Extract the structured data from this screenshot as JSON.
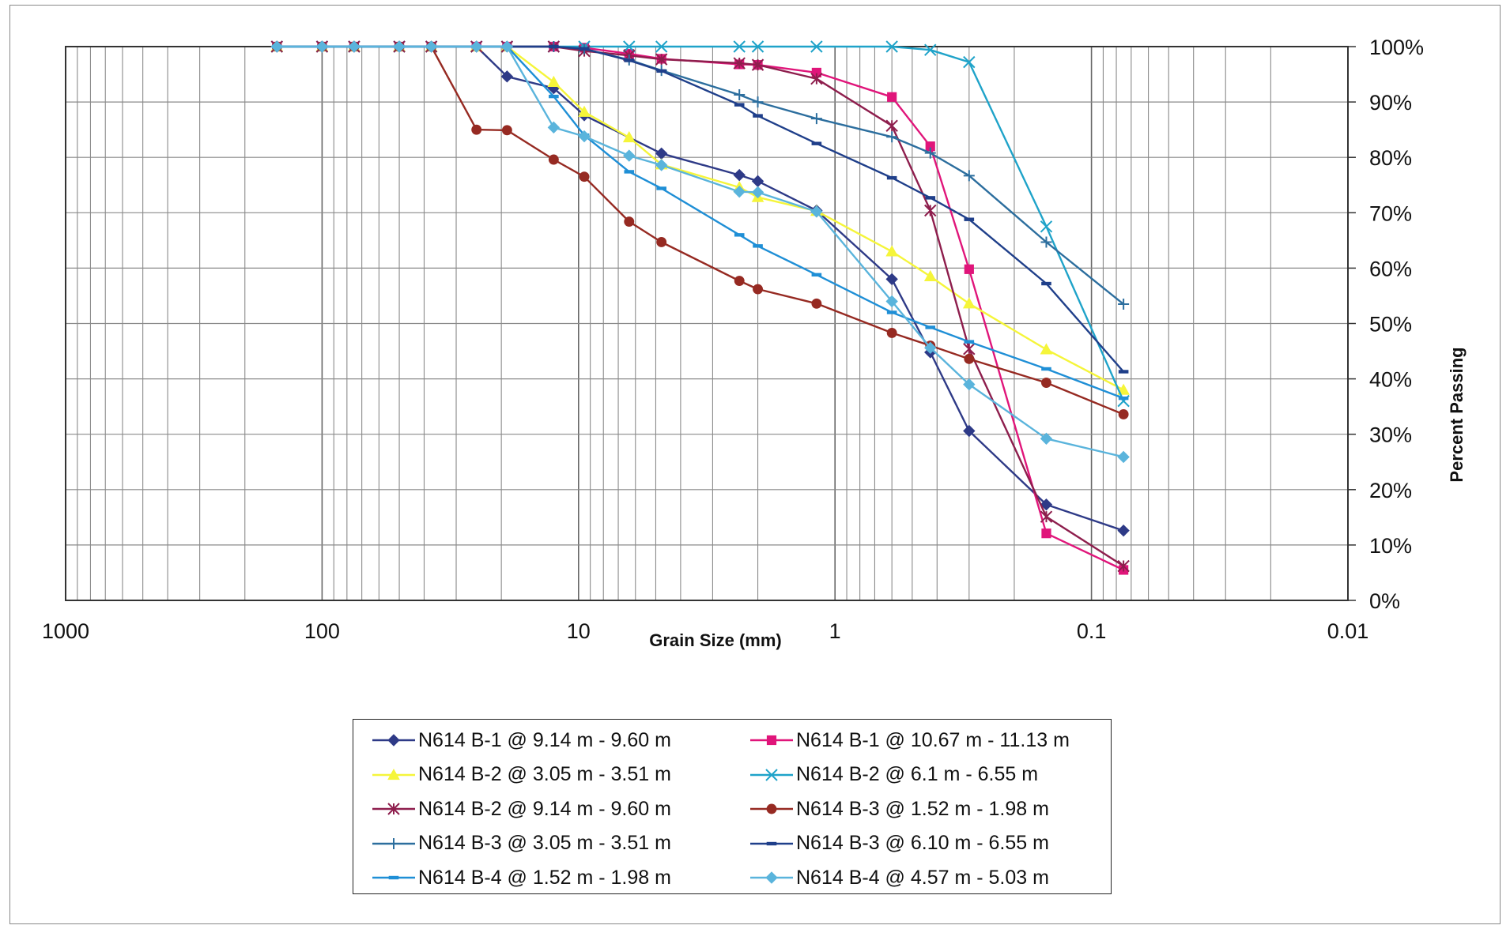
{
  "chart_data": {
    "type": "line",
    "title": "",
    "xlabel": "Grain Size (mm)",
    "ylabel": "Percent Passing",
    "x_scale": "log",
    "x_reversed": true,
    "xlim": [
      1000,
      0.01
    ],
    "ylim": [
      0,
      100
    ],
    "x_ticks": [
      1000,
      100,
      10,
      1,
      0.1,
      0.01
    ],
    "x_tick_labels": [
      "1000",
      "100",
      "10",
      "1",
      "0.1",
      "0.01"
    ],
    "y_ticks": [
      0,
      10,
      20,
      30,
      40,
      50,
      60,
      70,
      80,
      90,
      100
    ],
    "y_tick_labels": [
      "0%",
      "10%",
      "20%",
      "30%",
      "40%",
      "50%",
      "60%",
      "70%",
      "80%",
      "90%",
      "100%"
    ],
    "grid": true,
    "legend_position": "bottom",
    "series": [
      {
        "name": "N614 B-1 @ 9.14 m - 9.60 m",
        "color": "#2E3A87",
        "marker": "diamond",
        "x": [
          150,
          100,
          75,
          50,
          37.5,
          25,
          19,
          12.5,
          9.5,
          4.75,
          2.36,
          2.0,
          1.18,
          0.6,
          0.425,
          0.3,
          0.15,
          0.075
        ],
        "y": [
          100,
          100,
          100,
          100,
          100,
          100,
          94.6,
          92.5,
          87.6,
          80.7,
          76.8,
          75.7,
          70.4,
          58.0,
          44.8,
          30.6,
          17.3,
          12.6
        ]
      },
      {
        "name": "N614 B-1 @ 10.67 m - 11.13 m",
        "color": "#E0157A",
        "marker": "square",
        "x": [
          150,
          100,
          75,
          50,
          37.5,
          25,
          19,
          12.5,
          9.5,
          6.35,
          4.75,
          2.36,
          2.0,
          1.18,
          0.6,
          0.425,
          0.3,
          0.15,
          0.075
        ],
        "y": [
          100,
          100,
          100,
          100,
          100,
          100,
          100,
          100,
          99.8,
          98.7,
          97.8,
          96.8,
          96.7,
          95.3,
          90.9,
          82.0,
          59.8,
          12.1,
          5.5
        ]
      },
      {
        "name": "N614 B-2 @ 3.05 m - 3.51 m",
        "color": "#F5F53A",
        "marker": "triangle",
        "x": [
          150,
          100,
          75,
          50,
          37.5,
          25,
          19,
          12.5,
          9.5,
          6.35,
          4.75,
          2.36,
          2.0,
          1.18,
          0.6,
          0.425,
          0.3,
          0.15,
          0.075
        ],
        "y": [
          100,
          100,
          100,
          100,
          100,
          100,
          100,
          93.6,
          88.2,
          83.6,
          78.7,
          74.6,
          72.8,
          70.3,
          63.0,
          58.5,
          53.6,
          45.3,
          38.0
        ]
      },
      {
        "name": "N614 B-2 @ 6.1 m - 6.55 m",
        "color": "#1FA3C9",
        "marker": "x",
        "x": [
          150,
          100,
          75,
          50,
          37.5,
          25,
          19,
          12.5,
          9.5,
          6.35,
          4.75,
          2.36,
          2.0,
          1.18,
          0.6,
          0.425,
          0.3,
          0.15,
          0.075
        ],
        "y": [
          100,
          100,
          100,
          100,
          100,
          100,
          100,
          100,
          100,
          100,
          100,
          100,
          100,
          100,
          100,
          99.4,
          97.2,
          67.5,
          36.0
        ]
      },
      {
        "name": "N614 B-2 @ 9.14 m - 9.60 m",
        "color": "#8E1E4D",
        "marker": "star",
        "x": [
          150,
          100,
          75,
          50,
          37.5,
          25,
          19,
          12.5,
          9.5,
          6.35,
          4.75,
          2.36,
          2.0,
          1.18,
          0.6,
          0.425,
          0.3,
          0.15,
          0.075
        ],
        "y": [
          100,
          100,
          100,
          100,
          100,
          100,
          100,
          100,
          99.2,
          98.4,
          97.7,
          97.0,
          96.7,
          94.2,
          85.7,
          70.4,
          45.4,
          15.1,
          6.2
        ]
      },
      {
        "name": "N614 B-3 @ 1.52 m - 1.98 m",
        "color": "#962A22",
        "marker": "circle",
        "x": [
          150,
          100,
          75,
          50,
          37.5,
          25,
          19,
          12.5,
          9.5,
          6.35,
          4.75,
          2.36,
          2.0,
          1.18,
          0.6,
          0.425,
          0.3,
          0.15,
          0.075
        ],
        "y": [
          100,
          100,
          100,
          100,
          100,
          85.0,
          84.9,
          79.6,
          76.5,
          68.4,
          64.7,
          57.7,
          56.2,
          53.6,
          48.3,
          46.0,
          43.6,
          39.3,
          33.6
        ]
      },
      {
        "name": "N614 B-3 @ 3.05 m - 3.51 m",
        "color": "#2C6E9E",
        "marker": "plus",
        "x": [
          150,
          100,
          75,
          50,
          37.5,
          25,
          19,
          12.5,
          9.5,
          6.35,
          4.75,
          2.36,
          2.0,
          1.18,
          0.6,
          0.425,
          0.3,
          0.15,
          0.075
        ],
        "y": [
          100,
          100,
          100,
          100,
          100,
          100,
          100,
          100,
          99.6,
          97.6,
          95.7,
          91.3,
          90.0,
          87.0,
          83.7,
          80.8,
          76.7,
          64.7,
          53.5
        ]
      },
      {
        "name": "N614 B-3 @ 6.10 m - 6.55 m",
        "color": "#1F3F8A",
        "marker": "dash",
        "x": [
          150,
          100,
          75,
          50,
          37.5,
          25,
          19,
          12.5,
          9.5,
          6.35,
          4.75,
          2.36,
          2.0,
          1.18,
          0.6,
          0.425,
          0.3,
          0.15,
          0.075
        ],
        "y": [
          100,
          100,
          100,
          100,
          100,
          100,
          100,
          100,
          99.6,
          97.5,
          95.6,
          89.5,
          87.5,
          82.5,
          76.3,
          72.7,
          68.8,
          57.2,
          41.3
        ]
      },
      {
        "name": "N614 B-4 @ 1.52 m - 1.98 m",
        "color": "#1F8FD6",
        "marker": "dash",
        "x": [
          150,
          100,
          75,
          50,
          37.5,
          25,
          19,
          12.5,
          9.5,
          6.35,
          4.75,
          2.36,
          2.0,
          1.18,
          0.6,
          0.425,
          0.3,
          0.15,
          0.075
        ],
        "y": [
          100,
          100,
          100,
          100,
          100,
          100,
          100,
          91.0,
          84.0,
          77.4,
          74.4,
          66.0,
          64.0,
          58.8,
          52.0,
          49.3,
          46.7,
          41.8,
          36.5
        ]
      },
      {
        "name": "N614 B-4 @ 4.57 m - 5.03 m",
        "color": "#5AB4DC",
        "marker": "diamond",
        "x": [
          150,
          100,
          75,
          50,
          37.5,
          25,
          19,
          12.5,
          9.5,
          6.35,
          4.75,
          2.36,
          2.0,
          1.18,
          0.6,
          0.425,
          0.3,
          0.15,
          0.075
        ],
        "y": [
          100,
          100,
          100,
          100,
          100,
          100,
          100,
          85.4,
          83.8,
          80.3,
          78.6,
          73.8,
          73.7,
          70.2,
          54.0,
          45.6,
          39.0,
          29.2,
          25.9
        ]
      }
    ]
  }
}
